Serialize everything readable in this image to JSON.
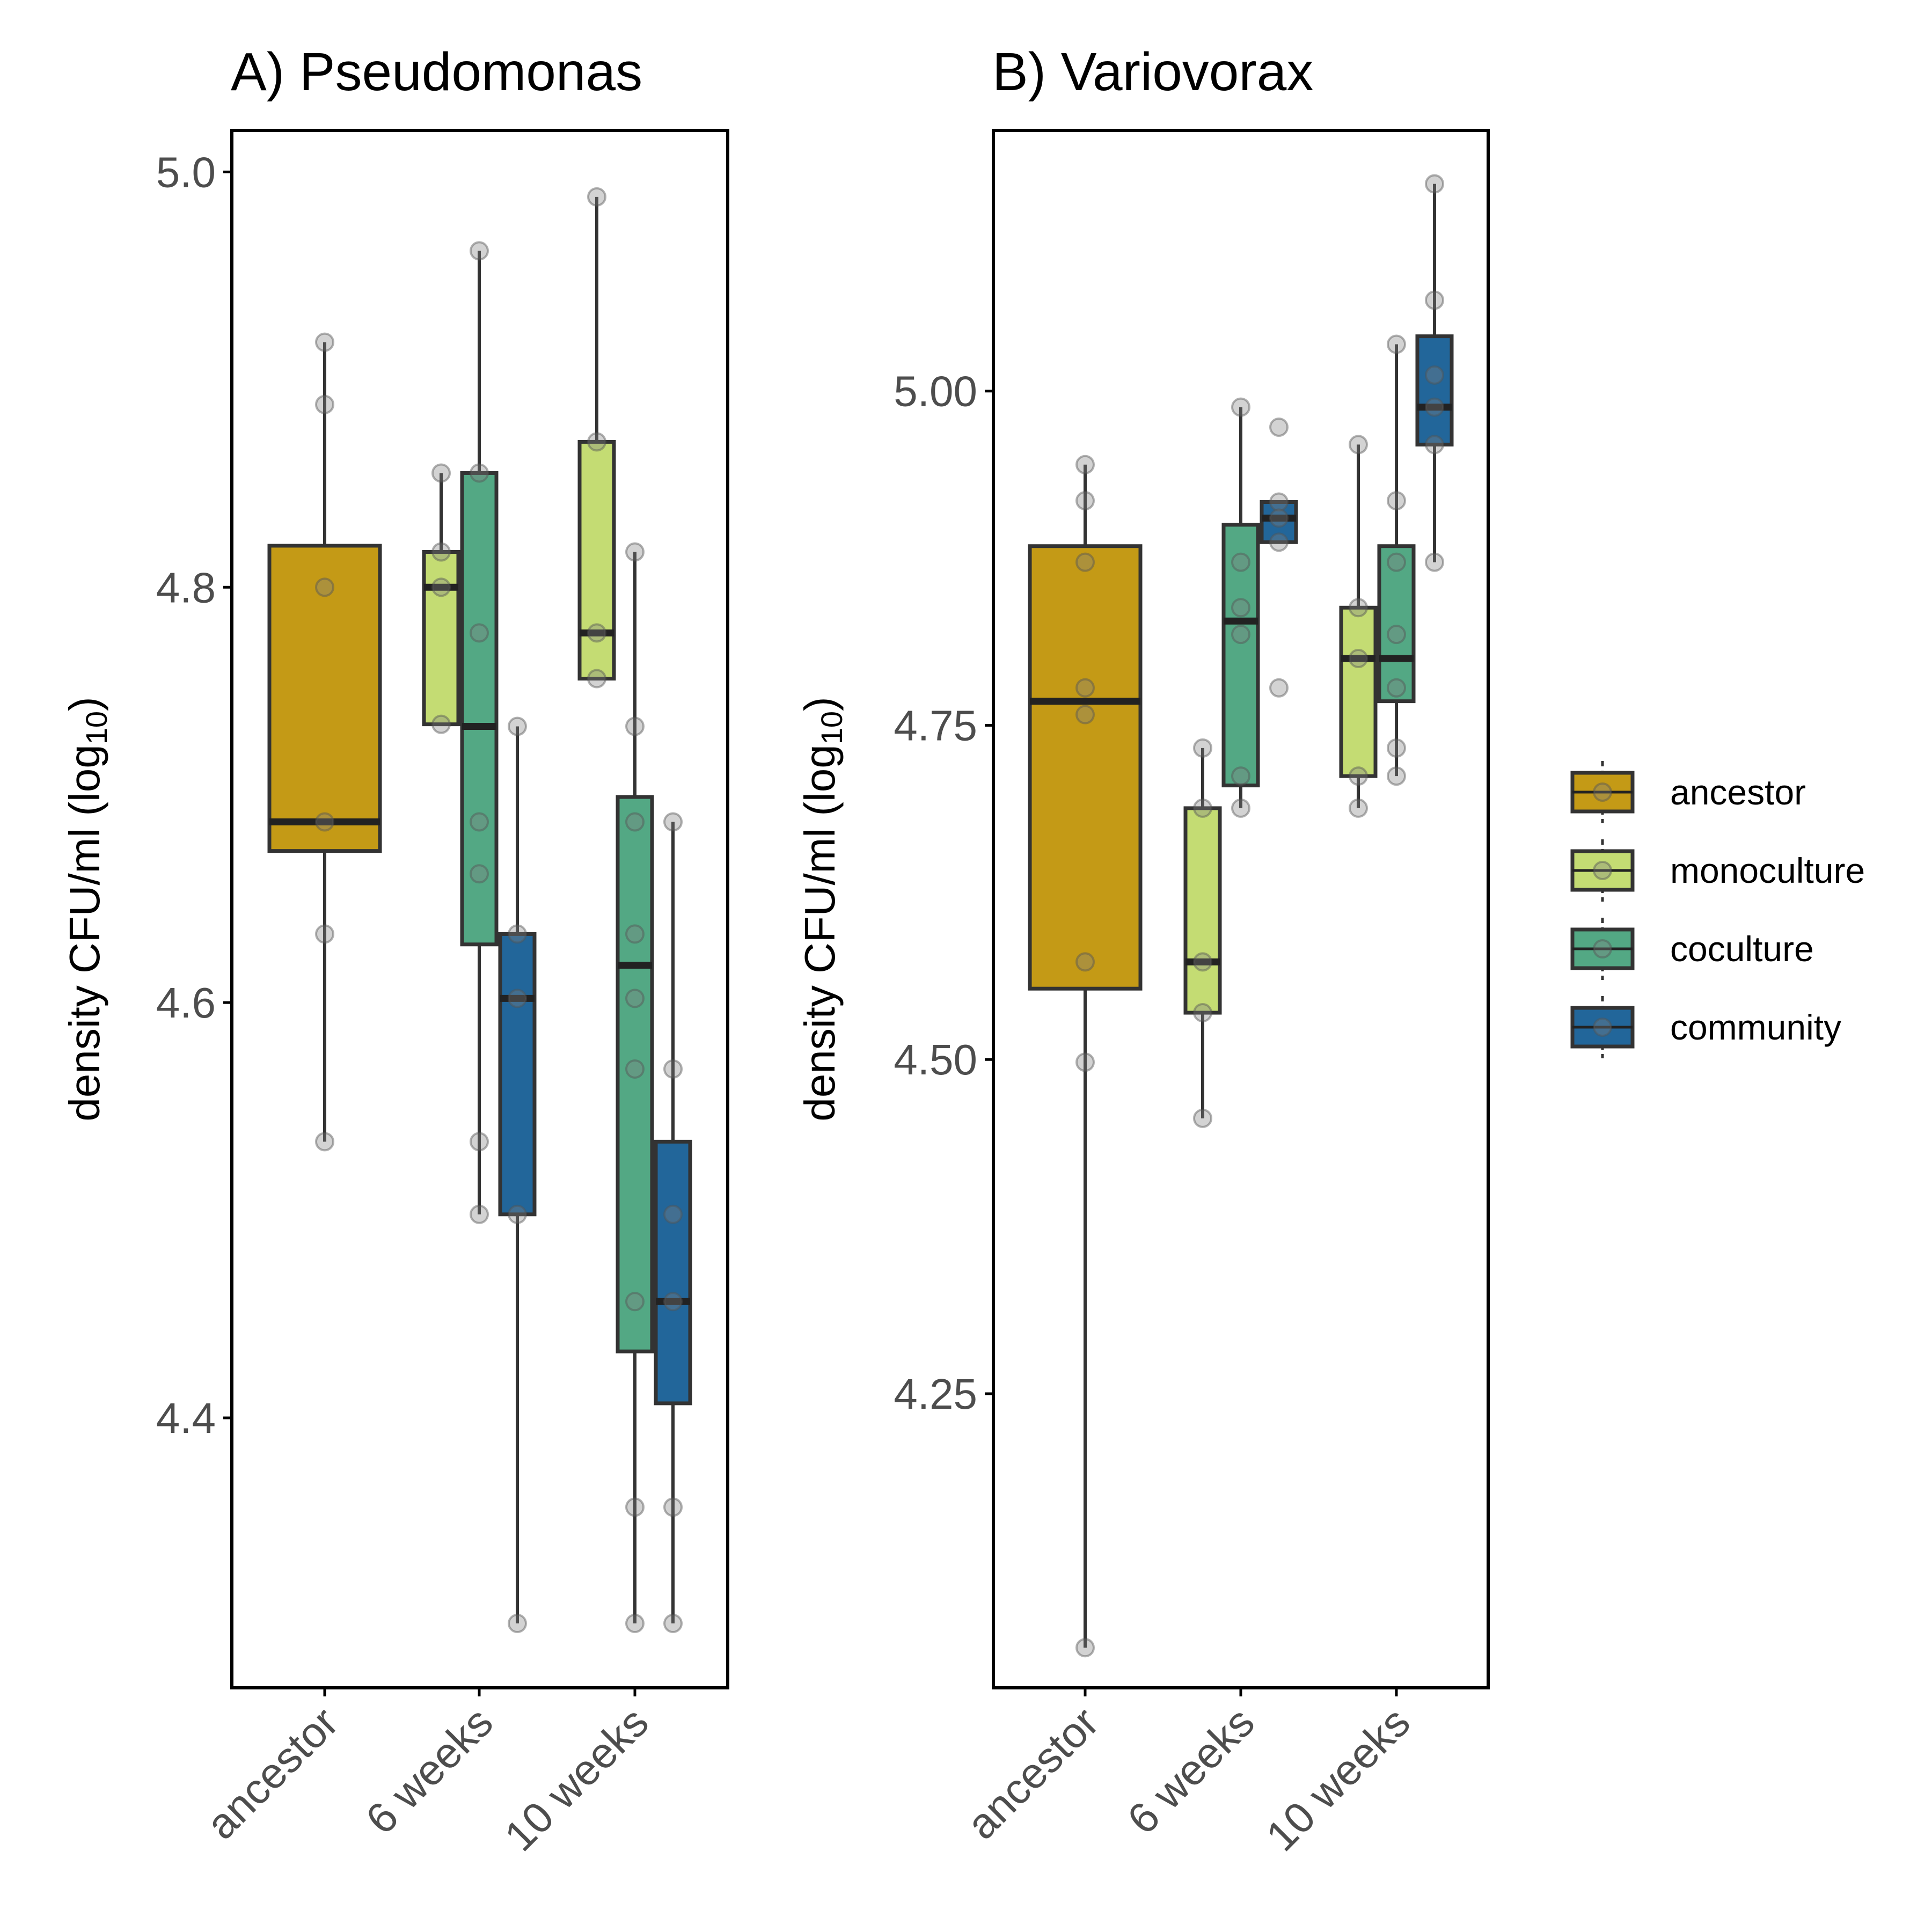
{
  "chart_data": [
    {
      "type": "boxplot",
      "title": "A) Pseudomonas",
      "ylabel": "density CFU/ml (log10)",
      "ylabel_base": "density CFU/ml (log",
      "ylabel_sub": "10",
      "ylabel_close": ")",
      "ylim": [
        4.27,
        5.02
      ],
      "yticks": [
        4.4,
        4.6,
        4.8,
        5.0
      ],
      "ytick_labels": [
        "4.4",
        "4.6",
        "4.8",
        "5.0"
      ],
      "categories": [
        "ancestor",
        "6 weeks",
        "10 weeks"
      ],
      "groups": [
        {
          "category": "ancestor",
          "treatment": "ancestor",
          "q1": 4.673,
          "median": 4.687,
          "q3": 4.82,
          "whisker_low": 4.533,
          "whisker_high": 4.918,
          "points": [
            4.918,
            4.888,
            4.8,
            4.687,
            4.633,
            4.533
          ]
        },
        {
          "category": "6 weeks",
          "treatment": "monoculture",
          "q1": 4.734,
          "median": 4.8,
          "q3": 4.817,
          "whisker_low": 4.734,
          "whisker_high": 4.855,
          "points": [
            4.855,
            4.817,
            4.8,
            4.734
          ]
        },
        {
          "category": "6 weeks",
          "treatment": "coculture",
          "q1": 4.628,
          "median": 4.733,
          "q3": 4.855,
          "whisker_low": 4.498,
          "whisker_high": 4.962,
          "points": [
            4.962,
            4.855,
            4.778,
            4.687,
            4.662,
            4.533,
            4.498
          ]
        },
        {
          "category": "6 weeks",
          "treatment": "community",
          "q1": 4.498,
          "median": 4.602,
          "q3": 4.633,
          "whisker_low": 4.301,
          "whisker_high": 4.733,
          "points": [
            4.733,
            4.633,
            4.602,
            4.498,
            4.301
          ]
        },
        {
          "category": "10 weeks",
          "treatment": "monoculture",
          "q1": 4.756,
          "median": 4.778,
          "q3": 4.87,
          "whisker_low": 4.756,
          "whisker_high": 4.988,
          "points": [
            4.988,
            4.87,
            4.778,
            4.756
          ]
        },
        {
          "category": "10 weeks",
          "treatment": "coculture",
          "q1": 4.432,
          "median": 4.618,
          "q3": 4.699,
          "whisker_low": 4.301,
          "whisker_high": 4.817,
          "points": [
            4.817,
            4.733,
            4.687,
            4.633,
            4.602,
            4.568,
            4.456,
            4.357,
            4.301
          ]
        },
        {
          "category": "10 weeks",
          "treatment": "community",
          "q1": 4.407,
          "median": 4.456,
          "q3": 4.533,
          "whisker_low": 4.301,
          "whisker_high": 4.687,
          "points": [
            4.687,
            4.568,
            4.498,
            4.456,
            4.357,
            4.301
          ]
        }
      ]
    },
    {
      "type": "boxplot",
      "title": "B) Variovorax",
      "ylabel": "density CFU/ml (log10)",
      "ylabel_base": "density CFU/ml (log",
      "ylabel_sub": "10",
      "ylabel_close": ")",
      "ylim": [
        4.03,
        5.195
      ],
      "yticks": [
        4.25,
        4.5,
        4.75,
        5.0
      ],
      "ytick_labels": [
        "4.25",
        "4.50",
        "4.75",
        "5.00"
      ],
      "categories": [
        "ancestor",
        "6 weeks",
        "10 weeks"
      ],
      "groups": [
        {
          "category": "ancestor",
          "treatment": "ancestor",
          "q1": 4.553,
          "median": 4.768,
          "q3": 4.884,
          "whisker_low": 4.06,
          "whisker_high": 4.945,
          "points": [
            4.945,
            4.918,
            4.872,
            4.778,
            4.758,
            4.573,
            4.498,
            4.06
          ]
        },
        {
          "category": "6 weeks",
          "treatment": "monoculture",
          "q1": 4.535,
          "median": 4.573,
          "q3": 4.688,
          "whisker_low": 4.456,
          "whisker_high": 4.733,
          "points": [
            4.733,
            4.688,
            4.573,
            4.535,
            4.456
          ]
        },
        {
          "category": "6 weeks",
          "treatment": "coculture",
          "q1": 4.705,
          "median": 4.828,
          "q3": 4.9,
          "whisker_low": 4.688,
          "whisker_high": 4.988,
          "points": [
            4.988,
            4.872,
            4.838,
            4.818,
            4.712,
            4.688
          ]
        },
        {
          "category": "6 weeks",
          "treatment": "community",
          "q1": 4.887,
          "median": 4.905,
          "q3": 4.917,
          "whisker_low": 4.887,
          "whisker_high": 4.917,
          "points": [
            4.973,
            4.917,
            4.905,
            4.887,
            4.778
          ]
        },
        {
          "category": "10 weeks",
          "treatment": "monoculture",
          "q1": 4.712,
          "median": 4.8,
          "q3": 4.838,
          "whisker_low": 4.688,
          "whisker_high": 4.96,
          "points": [
            4.96,
            4.838,
            4.8,
            4.712,
            4.688
          ]
        },
        {
          "category": "10 weeks",
          "treatment": "coculture",
          "q1": 4.768,
          "median": 4.8,
          "q3": 4.884,
          "whisker_low": 4.712,
          "whisker_high": 5.035,
          "points": [
            5.035,
            4.918,
            4.872,
            4.818,
            4.778,
            4.733,
            4.712
          ]
        },
        {
          "category": "10 weeks",
          "treatment": "community",
          "q1": 4.96,
          "median": 4.988,
          "q3": 5.041,
          "whisker_low": 4.872,
          "whisker_high": 5.155,
          "points": [
            5.155,
            5.068,
            5.012,
            4.988,
            4.96,
            4.872
          ]
        }
      ]
    }
  ],
  "legend": {
    "position": "right",
    "items": [
      {
        "label": "ancestor",
        "color": "#C49A16"
      },
      {
        "label": "monoculture",
        "color": "#C4DC73"
      },
      {
        "label": "coculture",
        "color": "#53A884"
      },
      {
        "label": "community",
        "color": "#22669A"
      }
    ]
  },
  "style": {
    "box_outline": "#333333",
    "whisker": "#333333",
    "point": "#808080",
    "axis": "#000000",
    "tick_text": "#4d4d4d"
  }
}
